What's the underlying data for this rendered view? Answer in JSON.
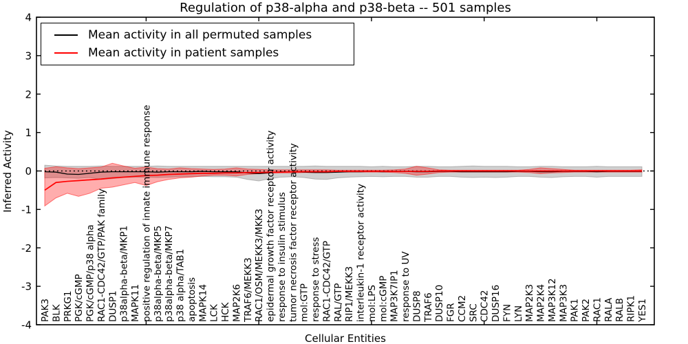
{
  "legend": {
    "items": [
      {
        "label": "Mean activity in all permuted samples",
        "color": "#000000"
      },
      {
        "label": "Mean activity in patient samples",
        "color": "#ff0000"
      }
    ]
  },
  "chart_data": {
    "type": "line",
    "title": "Regulation of p38-alpha and p38-beta -- 501 samples",
    "xlabel": "Cellular Entities",
    "ylabel": "Inferred Activity",
    "ylim": [
      -4,
      4
    ],
    "yticks": [
      4,
      3,
      2,
      1,
      0,
      -1,
      -2,
      -3,
      -4
    ],
    "grid": false,
    "legend_position": "upper left",
    "zero_line": {
      "style": "dotted",
      "color": "#000000",
      "y": 0
    },
    "categories": [
      "PAK3",
      "BLK",
      "PRKG1",
      "PGK/cGMP",
      "PGK/cGMP/p38 alpha",
      "RAC1-CDC42/GTP/PAK family",
      "DUSP1",
      "p38alpha-beta/MKP1",
      "MAPK11",
      "positive regulation of innate immune response",
      "p38alpha-beta/MKP5",
      "p38alpha-beta/MKP7",
      "p38 alpha/TAB1",
      "apoptosis",
      "MAPK14",
      "LCK",
      "HCK",
      "MAP2K6",
      "TRAF6/MEKK3",
      "RAC1/OSM/MEKK3/MKK3",
      "epidermal growth factor receptor activity",
      "response to insulin stimulus",
      "tumor necrosis factor receptor activity",
      "mol:GTP",
      "response to stress",
      "RAC1-CDC42/GTP",
      "RAL/GTP",
      "RIP1/MEKK3",
      "interleukin-1 receptor activity",
      "mol:LPS",
      "mol:cGMP",
      "MAP3K7IP1",
      "response to UV",
      "DUSP8",
      "TRAF6",
      "DUSP10",
      "FGR",
      "CCM2",
      "SRC",
      "CDC42",
      "DUSP16",
      "FYN",
      "LYN",
      "MAP2K3",
      "MAP2K4",
      "MAP3K12",
      "MAP3K3",
      "PAK1",
      "PAK2",
      "RAC1",
      "RALA",
      "RALB",
      "RIPK1",
      "YES1"
    ],
    "series": [
      {
        "name": "Mean activity in all permuted samples",
        "color": "#000000",
        "values": [
          -0.02,
          -0.03,
          -0.08,
          -0.09,
          -0.06,
          -0.03,
          -0.02,
          -0.02,
          -0.02,
          -0.02,
          -0.03,
          -0.02,
          -0.02,
          -0.02,
          -0.01,
          -0.02,
          -0.02,
          -0.02,
          -0.05,
          -0.07,
          -0.04,
          -0.02,
          -0.02,
          -0.03,
          -0.04,
          -0.04,
          -0.03,
          -0.02,
          -0.02,
          -0.01,
          -0.02,
          -0.01,
          -0.01,
          -0.02,
          -0.02,
          -0.01,
          -0.01,
          -0.02,
          -0.02,
          -0.02,
          -0.02,
          -0.02,
          -0.01,
          -0.01,
          -0.02,
          -0.02,
          -0.01,
          -0.01,
          -0.01,
          -0.02,
          -0.01,
          -0.01,
          -0.01,
          -0.01
        ]
      },
      {
        "name": "Mean activity in patient samples",
        "color": "#ff0000",
        "values": [
          -0.5,
          -0.3,
          -0.27,
          -0.25,
          -0.23,
          -0.21,
          -0.18,
          -0.16,
          -0.14,
          -0.12,
          -0.11,
          -0.09,
          -0.08,
          -0.07,
          -0.06,
          -0.06,
          -0.05,
          -0.05,
          -0.04,
          -0.04,
          -0.03,
          -0.03,
          -0.02,
          -0.02,
          -0.02,
          -0.02,
          -0.01,
          -0.01,
          -0.01,
          -0.01,
          -0.01,
          -0.01,
          -0.01,
          -0.01,
          -0.01,
          0,
          0,
          0,
          0,
          0,
          0,
          0,
          0,
          0,
          0,
          0,
          0,
          0,
          0,
          0,
          0,
          0,
          0,
          0
        ]
      }
    ],
    "bands": [
      {
        "name": "permuted samples range",
        "color": "#909090",
        "opacity": 0.42,
        "upper": [
          0.15,
          0.13,
          0.12,
          0.12,
          0.12,
          0.13,
          0.12,
          0.12,
          0.12,
          0.12,
          0.13,
          0.12,
          0.12,
          0.12,
          0.12,
          0.12,
          0.12,
          0.12,
          0.12,
          0.12,
          0.12,
          0.12,
          0.12,
          0.12,
          0.13,
          0.12,
          0.12,
          0.12,
          0.12,
          0.11,
          0.12,
          0.11,
          0.11,
          0.12,
          0.12,
          0.11,
          0.11,
          0.12,
          0.13,
          0.12,
          0.12,
          0.12,
          0.11,
          0.11,
          0.12,
          0.12,
          0.11,
          0.11,
          0.11,
          0.12,
          0.11,
          0.11,
          0.11,
          0.11
        ],
        "lower": [
          -0.18,
          -0.17,
          -0.18,
          -0.19,
          -0.17,
          -0.22,
          -0.2,
          -0.17,
          -0.16,
          -0.16,
          -0.17,
          -0.16,
          -0.15,
          -0.15,
          -0.14,
          -0.15,
          -0.15,
          -0.16,
          -0.22,
          -0.26,
          -0.2,
          -0.16,
          -0.15,
          -0.17,
          -0.21,
          -0.22,
          -0.18,
          -0.16,
          -0.15,
          -0.14,
          -0.15,
          -0.14,
          -0.14,
          -0.16,
          -0.16,
          -0.14,
          -0.14,
          -0.16,
          -0.17,
          -0.16,
          -0.17,
          -0.16,
          -0.14,
          -0.14,
          -0.16,
          -0.17,
          -0.15,
          -0.14,
          -0.14,
          -0.16,
          -0.14,
          -0.14,
          -0.14,
          -0.14
        ]
      },
      {
        "name": "patient samples range",
        "color": "#ff0000",
        "opacity": 0.32,
        "upper": [
          0.07,
          0.11,
          0.08,
          0.06,
          0.08,
          0.1,
          0.2,
          0.13,
          0.07,
          0.1,
          0.06,
          0.05,
          0.08,
          0.06,
          0.05,
          0.04,
          0.05,
          0.08,
          0.05,
          0.04,
          0.03,
          0.03,
          0.03,
          0.03,
          0.03,
          0.03,
          0.02,
          0.02,
          0.02,
          0.02,
          0.02,
          0.03,
          0.05,
          0.12,
          0.08,
          0.03,
          0.02,
          0.02,
          0.02,
          0.02,
          0.02,
          0.02,
          0.02,
          0.04,
          0.08,
          0.06,
          0.04,
          0.02,
          0.02,
          0.02,
          0.02,
          0.02,
          0.02,
          0.03
        ],
        "lower": [
          -0.91,
          -0.7,
          -0.58,
          -0.66,
          -0.58,
          -0.45,
          -0.42,
          -0.36,
          -0.3,
          -0.38,
          -0.28,
          -0.22,
          -0.18,
          -0.16,
          -0.13,
          -0.11,
          -0.11,
          -0.13,
          -0.09,
          -0.07,
          -0.06,
          -0.05,
          -0.05,
          -0.04,
          -0.04,
          -0.04,
          -0.03,
          -0.03,
          -0.03,
          -0.03,
          -0.03,
          -0.04,
          -0.06,
          -0.11,
          -0.08,
          -0.04,
          -0.03,
          -0.03,
          -0.03,
          -0.03,
          -0.03,
          -0.03,
          -0.03,
          -0.04,
          -0.07,
          -0.05,
          -0.04,
          -0.03,
          -0.03,
          -0.03,
          -0.03,
          -0.03,
          -0.03,
          -0.03
        ]
      }
    ]
  }
}
